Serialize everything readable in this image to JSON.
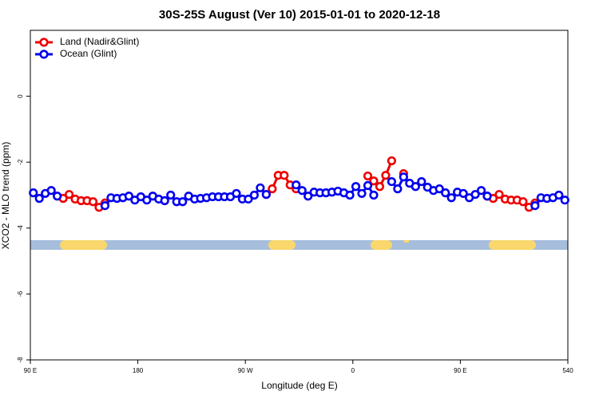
{
  "chart_data": {
    "type": "line",
    "title": "30S-25S August (Ver 10)   2015-01-01 to 2020-12-18",
    "xlabel": "Longitude (deg E)",
    "ylabel": "XCO2 - MLO trend (ppm)",
    "x": [
      92.5,
      97.5,
      102.5,
      107.5,
      112.5,
      117.5,
      122.5,
      127.5,
      132.5,
      137.5,
      142.5,
      147.5,
      152.5,
      157.5,
      162.5,
      167.5,
      172.5,
      177.5,
      182.5,
      187.5,
      192.5,
      197.5,
      202.5,
      207.5,
      212.5,
      217.5,
      222.5,
      227.5,
      232.5,
      237.5,
      242.5,
      247.5,
      252.5,
      257.5,
      262.5,
      267.5,
      272.5,
      277.5,
      282.5,
      287.5,
      292.5,
      297.5,
      302.5,
      307.5,
      312.5,
      317.5,
      322.5,
      327.5,
      332.5,
      337.5,
      342.5,
      347.5,
      352.5,
      357.5,
      362.5,
      367.5,
      372.5,
      377.5,
      382.5,
      387.5,
      392.5,
      397.5,
      402.5,
      407.5,
      412.5,
      417.5,
      422.5,
      427.5,
      432.5,
      437.5,
      442.5,
      447.5,
      452.5,
      457.5,
      462.5,
      467.5,
      472.5,
      477.5,
      482.5,
      487.5,
      492.5,
      497.5,
      502.5,
      507.5,
      512.5,
      517.5,
      522.5,
      527.5,
      532.5,
      537.5
    ],
    "series": [
      {
        "name": "Land (Nadir&Glint)",
        "color": "#ee0000",
        "values": [
          null,
          null,
          null,
          null,
          null,
          -3.1,
          -2.98,
          -3.12,
          -3.17,
          -3.17,
          -3.2,
          -3.37,
          -3.24,
          null,
          null,
          null,
          null,
          null,
          null,
          null,
          null,
          null,
          null,
          null,
          null,
          null,
          null,
          null,
          null,
          null,
          null,
          null,
          null,
          null,
          null,
          null,
          null,
          null,
          null,
          -2.98,
          -2.81,
          -2.4,
          -2.4,
          -2.69,
          -2.81,
          null,
          null,
          null,
          null,
          null,
          null,
          null,
          null,
          null,
          null,
          null,
          -2.42,
          -2.57,
          -2.74,
          -2.4,
          -1.96,
          null,
          -2.35,
          null,
          null,
          null,
          null,
          null,
          null,
          null,
          null,
          null,
          null,
          null,
          null,
          null,
          -3.03,
          -3.1,
          -2.98,
          -3.12,
          -3.15,
          -3.15,
          -3.2,
          -3.37,
          -3.24,
          null,
          null,
          null,
          null,
          null
        ]
      },
      {
        "name": "Ocean (Glint)",
        "color": "#0000ee",
        "values": [
          -2.93,
          -3.1,
          -2.95,
          -2.86,
          -3.03,
          null,
          null,
          null,
          null,
          null,
          null,
          null,
          -3.32,
          -3.08,
          -3.1,
          -3.08,
          -3.03,
          -3.15,
          -3.05,
          -3.15,
          -3.03,
          -3.12,
          -3.17,
          -3.0,
          -3.2,
          -3.2,
          -3.03,
          -3.12,
          -3.1,
          -3.08,
          -3.05,
          -3.05,
          -3.05,
          -3.05,
          -2.95,
          -3.12,
          -3.12,
          -3.0,
          -2.78,
          -2.98,
          null,
          null,
          null,
          null,
          -2.69,
          -2.86,
          -3.03,
          -2.91,
          -2.93,
          -2.93,
          -2.91,
          -2.88,
          -2.93,
          -3.0,
          -2.74,
          -2.95,
          -2.71,
          -3.0,
          null,
          null,
          -2.59,
          -2.81,
          -2.45,
          -2.64,
          -2.74,
          -2.59,
          -2.76,
          -2.86,
          -2.81,
          -2.93,
          -3.08,
          -2.91,
          -2.95,
          -3.08,
          -2.98,
          -2.86,
          -3.03,
          null,
          null,
          null,
          null,
          null,
          null,
          null,
          -3.32,
          -3.08,
          -3.1,
          -3.08,
          -3.0,
          -3.15
        ]
      }
    ],
    "xlim": [
      90,
      540
    ],
    "xticks": [
      {
        "value": 90,
        "label": "90 E"
      },
      180,
      {
        "value": 270,
        "label": "90 W"
      },
      {
        "value": 360,
        "label": "0"
      },
      {
        "value": 450,
        "label": "90 E"
      },
      540
    ],
    "ylim": [
      -8,
      2
    ],
    "yticks": [
      0,
      -2,
      -4,
      -6,
      -8
    ],
    "legend": "top-left"
  }
}
